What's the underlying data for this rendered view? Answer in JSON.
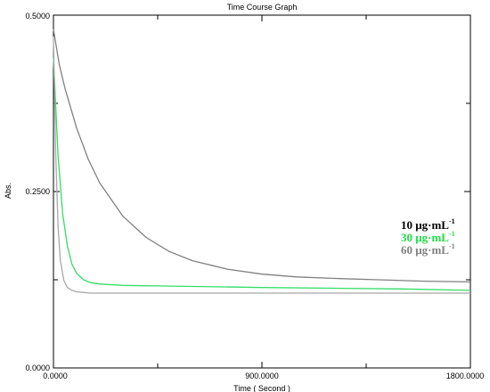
{
  "chart_data": {
    "type": "line",
    "title": "Time Course Graph",
    "xlabel": "Time ( Second )",
    "ylabel": "Abs.",
    "xlim": [
      0,
      1800
    ],
    "ylim": [
      0,
      0.5
    ],
    "x_ticks": [
      0,
      900,
      1800
    ],
    "x_tick_labels": [
      "0.0000",
      "900.0000",
      "1800.0000"
    ],
    "y_ticks": [
      0,
      0.25,
      0.5
    ],
    "y_tick_labels": [
      "0.0000",
      "0.2500",
      "0.5000"
    ],
    "grid": false,
    "legend_position": "right",
    "series": [
      {
        "name": "10 μg·mL",
        "superscript": "-1",
        "legend_color": "#000000",
        "line_color": "#808080",
        "x": [
          0,
          25,
          50,
          100,
          150,
          200,
          300,
          400,
          500,
          600,
          750,
          900,
          1050,
          1200,
          1400,
          1600,
          1800
        ],
        "y": [
          0.48,
          0.43,
          0.396,
          0.34,
          0.296,
          0.262,
          0.215,
          0.185,
          0.165,
          0.152,
          0.14,
          0.133,
          0.129,
          0.127,
          0.125,
          0.123,
          0.122
        ]
      },
      {
        "name": "30 μg·mL",
        "superscript": "-1",
        "legend_color": "#22dd44",
        "line_color": "#33dd66",
        "x": [
          0,
          10,
          20,
          40,
          60,
          80,
          100,
          130,
          160,
          200,
          300,
          500,
          700,
          900,
          1200,
          1500,
          1800
        ],
        "y": [
          0.44,
          0.37,
          0.3,
          0.218,
          0.173,
          0.147,
          0.134,
          0.125,
          0.121,
          0.119,
          0.117,
          0.116,
          0.115,
          0.114,
          0.113,
          0.112,
          0.11
        ]
      },
      {
        "name": "60 μg·mL",
        "superscript": "-1",
        "legend_color": "#808080",
        "line_color": "#a8a8a8",
        "x": [
          0,
          5,
          10,
          20,
          30,
          45,
          60,
          80,
          100,
          130,
          160,
          200,
          400,
          600,
          900,
          1200,
          1500,
          1800
        ],
        "y": [
          0.47,
          0.38,
          0.3,
          0.2,
          0.152,
          0.124,
          0.114,
          0.11,
          0.108,
          0.107,
          0.106,
          0.106,
          0.106,
          0.106,
          0.106,
          0.106,
          0.106,
          0.106
        ]
      }
    ]
  }
}
